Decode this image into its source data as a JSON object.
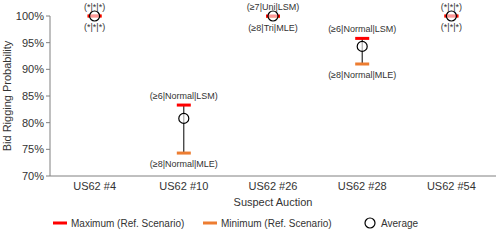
{
  "chart_data": {
    "type": "range_dot",
    "x_label": "Suspect Auction",
    "y_label": "Bid Rigging Probability",
    "categories": [
      "US62 #4",
      "US62 #10",
      "US62 #26",
      "US62 #28",
      "US62 #54"
    ],
    "series": [
      {
        "name": "Maximum (Ref. Scenario)",
        "color": "#ff0000",
        "marker": "dash",
        "values": [
          100,
          83.3,
          100,
          95.8,
          100
        ]
      },
      {
        "name": "Minimum (Ref. Scenario)",
        "color": "#ed7d31",
        "marker": "dash",
        "values": [
          100,
          74.3,
          99.9,
          91.0,
          100
        ]
      },
      {
        "name": "Average",
        "color": "#000000",
        "marker": "circle",
        "values": [
          100,
          80.8,
          100,
          94.3,
          100
        ]
      }
    ],
    "annotations": {
      "above": [
        "(*|*|*)",
        "(≥6|Normal|LSM)",
        "(≥7|Uni|LSM)",
        "(≥6|Normal|LSM)",
        "(*|*|*)"
      ],
      "below": [
        "(*|*|*)",
        "(≥8|Normal|MLE)",
        "(≥8|Tri|MLE)",
        "(≥8|Normal|MLE)",
        "(*|*|*)"
      ]
    },
    "ylim": [
      70,
      100
    ],
    "yticks": [
      {
        "value": 70,
        "label": "70%"
      },
      {
        "value": 75,
        "label": "75%"
      },
      {
        "value": 80,
        "label": "80%"
      },
      {
        "value": 85,
        "label": "85%"
      },
      {
        "value": 90,
        "label": "90%"
      },
      {
        "value": 95,
        "label": "95%"
      },
      {
        "value": 100,
        "label": "100%"
      }
    ],
    "grid": false,
    "legend": "bottom"
  }
}
